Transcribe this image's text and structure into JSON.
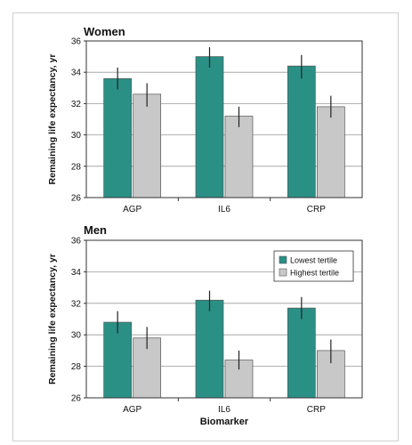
{
  "chart_data": [
    {
      "type": "bar",
      "title": "Women",
      "ylabel": "Remaining life expectancy, yr",
      "xlabel": "",
      "ylim": [
        26,
        36
      ],
      "yticks": [
        26,
        28,
        30,
        32,
        34,
        36
      ],
      "grid": true,
      "categories": [
        "AGP",
        "IL6",
        "CRP"
      ],
      "series": [
        {
          "name": "Lowest tertile",
          "color": "#2a9086",
          "values": [
            33.6,
            35.0,
            34.4
          ],
          "error_low": [
            32.9,
            34.3,
            33.6
          ],
          "error_high": [
            34.3,
            35.6,
            35.1
          ]
        },
        {
          "name": "Highest tertile",
          "color": "#c8c8c8",
          "values": [
            32.6,
            31.2,
            31.8
          ],
          "error_low": [
            31.8,
            30.5,
            31.1
          ],
          "error_high": [
            33.3,
            31.8,
            32.5
          ]
        }
      ]
    },
    {
      "type": "bar",
      "title": "Men",
      "ylabel": "Remaining life expectancy, yr",
      "xlabel": "Biomarker",
      "ylim": [
        26,
        36
      ],
      "yticks": [
        26,
        28,
        30,
        32,
        34,
        36
      ],
      "grid": true,
      "legend_position": "top-right",
      "categories": [
        "AGP",
        "IL6",
        "CRP"
      ],
      "series": [
        {
          "name": "Lowest tertile",
          "color": "#2a9086",
          "values": [
            30.8,
            32.2,
            31.7
          ],
          "error_low": [
            30.1,
            31.5,
            31.0
          ],
          "error_high": [
            31.5,
            32.8,
            32.4
          ]
        },
        {
          "name": "Highest tertile",
          "color": "#c8c8c8",
          "values": [
            29.8,
            28.4,
            29.0
          ],
          "error_low": [
            29.1,
            27.8,
            28.2
          ],
          "error_high": [
            30.5,
            29.0,
            29.7
          ]
        }
      ]
    }
  ]
}
